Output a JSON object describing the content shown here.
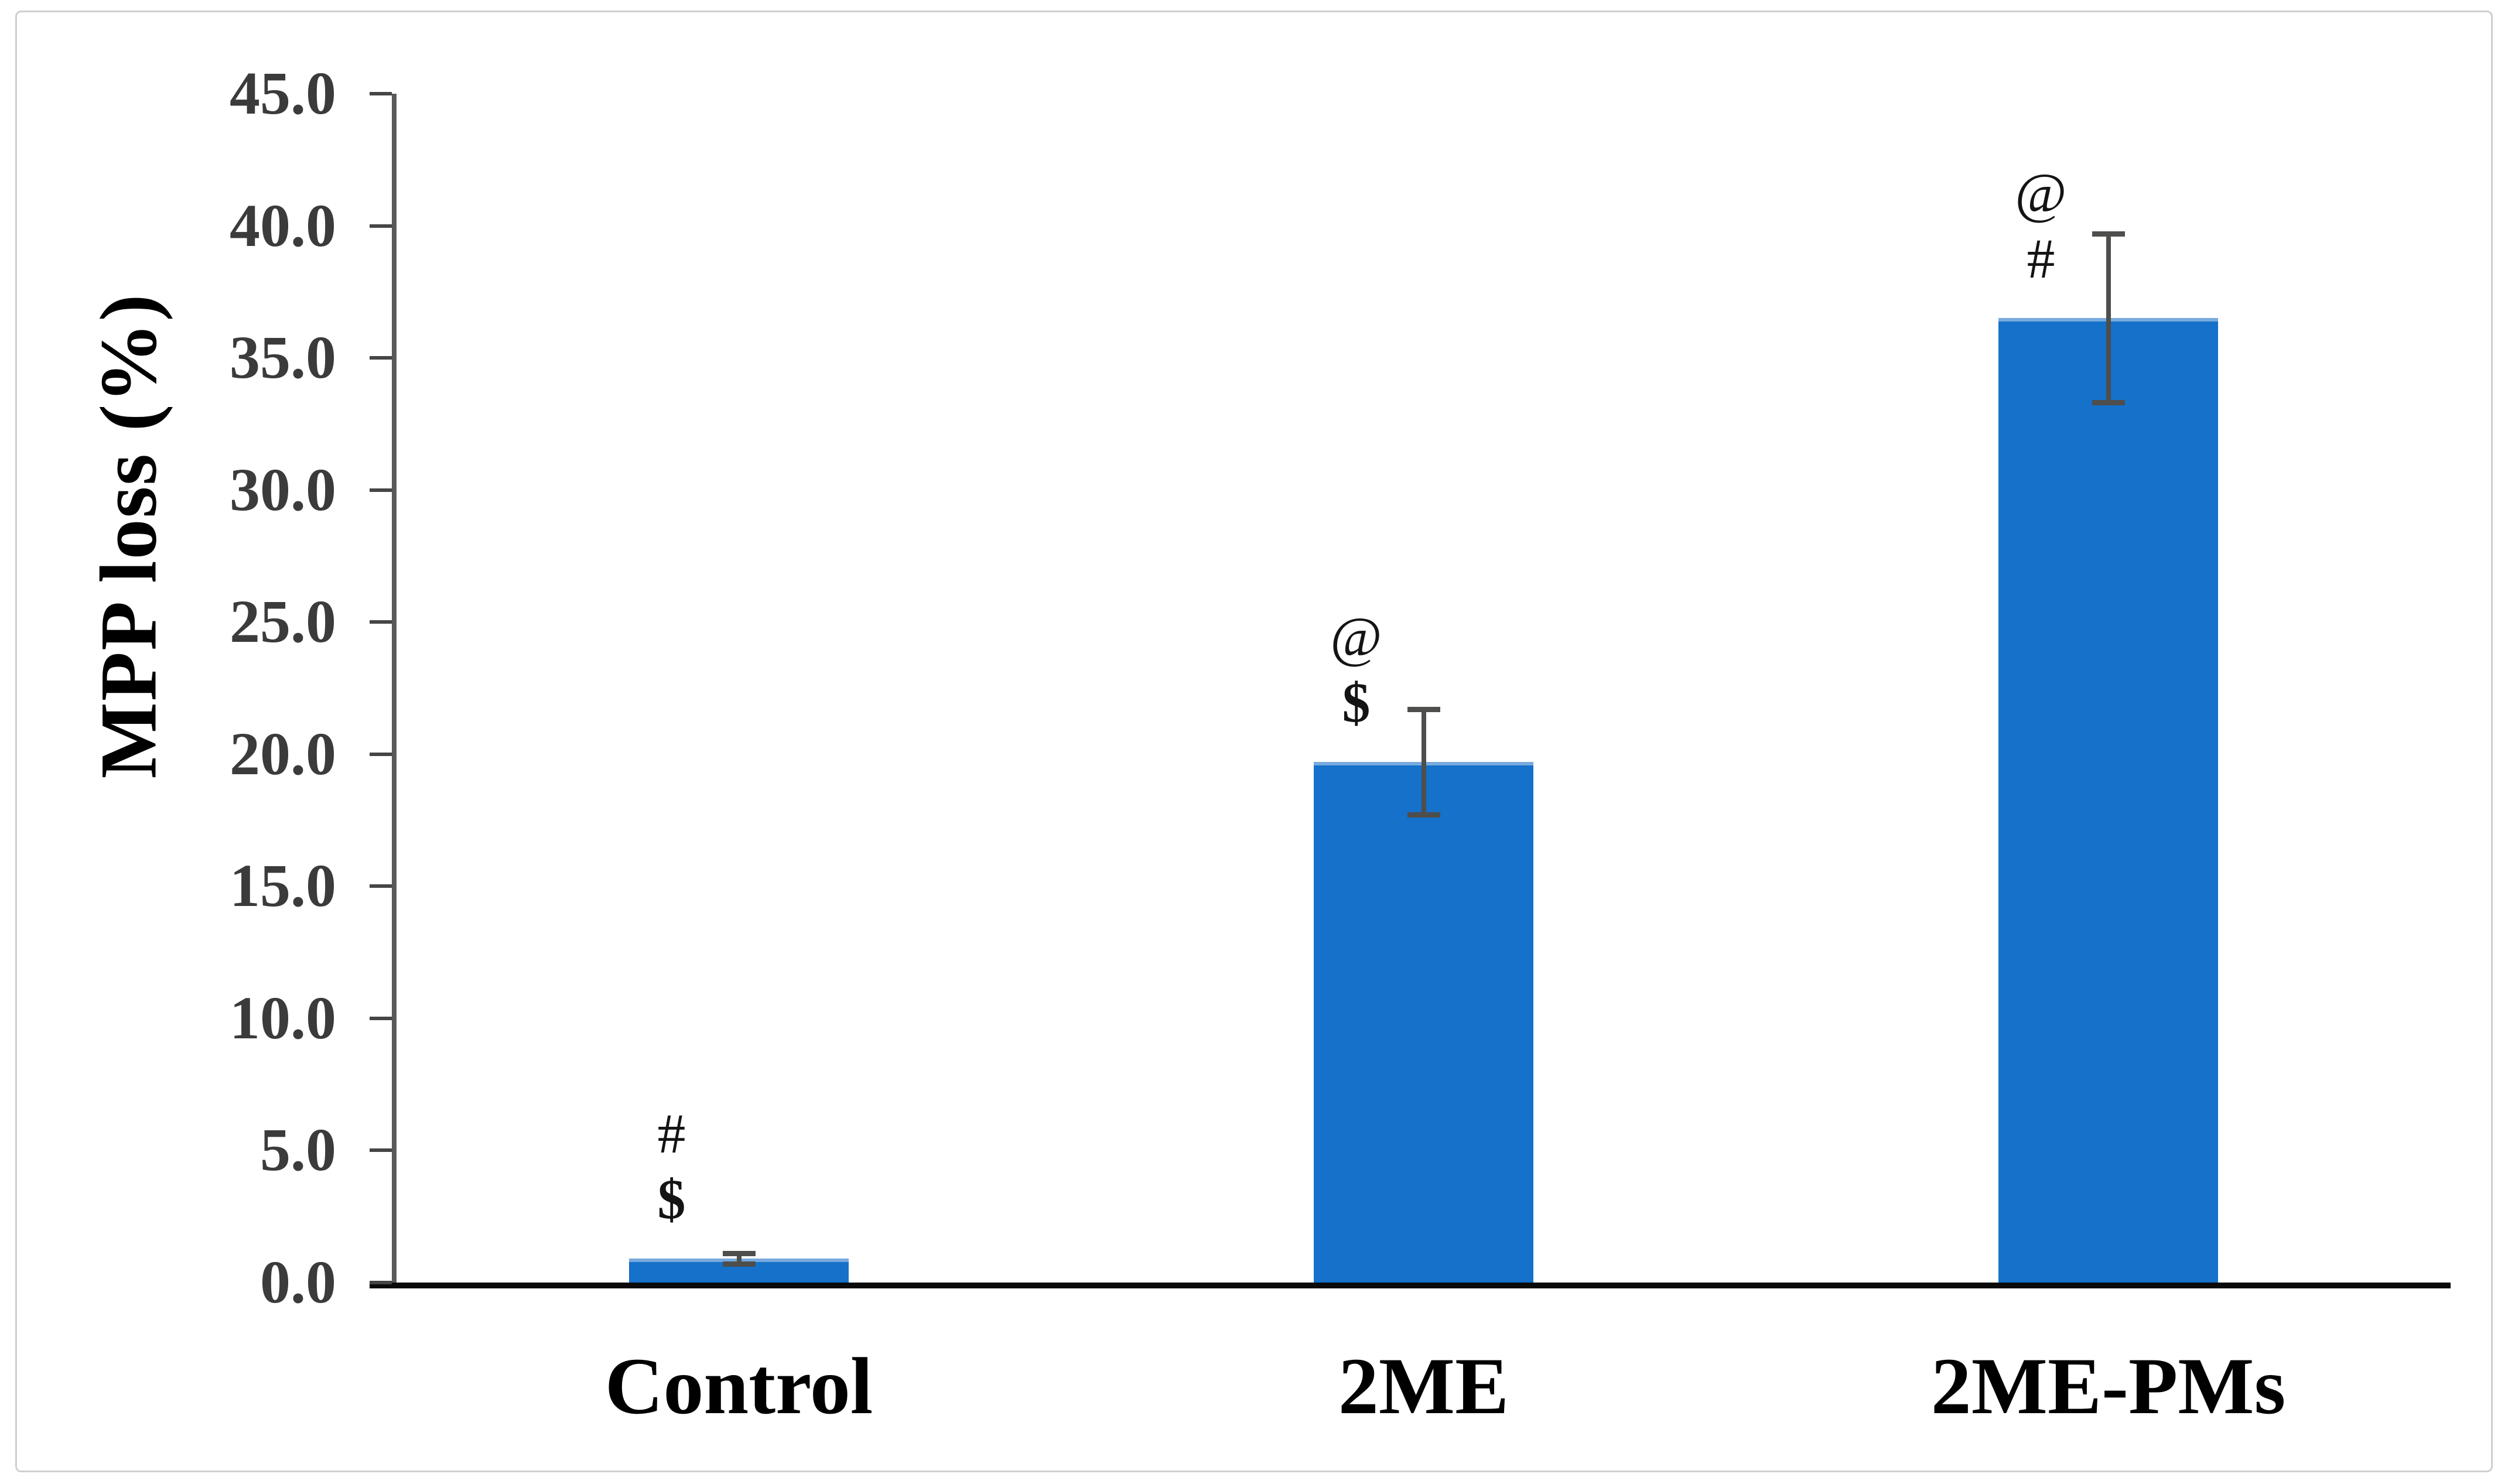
{
  "chart_data": {
    "type": "bar",
    "title": "",
    "categories": [
      "Control",
      "2ME",
      "2ME-PMs"
    ],
    "values": [
      0.9,
      19.7,
      36.5
    ],
    "errors": [
      0.2,
      2.0,
      3.2
    ],
    "annotations": [
      [
        "#",
        "$"
      ],
      [
        "@",
        "$"
      ],
      [
        "@",
        "#"
      ]
    ],
    "ylabel": "MPP loss (%)",
    "xlabel": "",
    "ylim": [
      0,
      45
    ],
    "ytick_step": 5,
    "ytick_decimals": 1,
    "grid": "off",
    "legend": "none",
    "bar_color": "#1571C9",
    "error_color": "#4E4E4C",
    "axis_color": "#595959",
    "baseline_color": "#0a0a0a"
  }
}
